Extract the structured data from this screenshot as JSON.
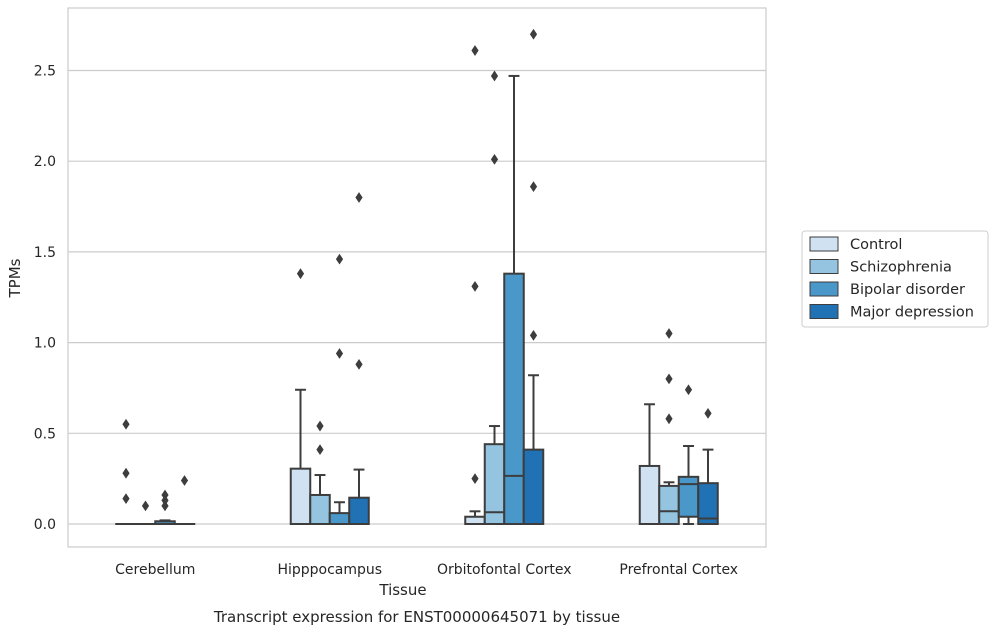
{
  "chart_data": {
    "type": "box",
    "caption": "Transcript expression for ENST00000645071 by tissue",
    "xlabel": "Tissue",
    "ylabel": "TPMs",
    "ylim": [
      -0.13,
      2.85
    ],
    "yticks": [
      "0.0",
      "0.5",
      "1.0",
      "1.5",
      "2.0",
      "2.5"
    ],
    "ytick_values": [
      0,
      0.5,
      1.0,
      1.5,
      2.0,
      2.5
    ],
    "grid": "horizontal",
    "legend_position": "right",
    "categories": [
      "Cerebellum",
      "Hipppocampus",
      "Orbitofontal Cortex",
      "Prefrontal Cortex"
    ],
    "series": [
      {
        "name": "Control",
        "color": "#d0e1f2",
        "boxes": [
          {
            "q1": 0,
            "median": 0,
            "q3": 0,
            "whisker_low": 0,
            "whisker_high": 0,
            "outliers": [
              0.55,
              0.28,
              0.14
            ]
          },
          {
            "q1": 0,
            "median": 0,
            "q3": 0.305,
            "whisker_low": 0,
            "whisker_high": 0.74,
            "outliers": [
              1.38
            ]
          },
          {
            "q1": 0,
            "median": 0,
            "q3": 0.04,
            "whisker_low": 0,
            "whisker_high": 0.07,
            "outliers": [
              0.25,
              1.31,
              2.61
            ]
          },
          {
            "q1": 0,
            "median": 0,
            "q3": 0.32,
            "whisker_low": 0,
            "whisker_high": 0.66,
            "outliers": []
          }
        ]
      },
      {
        "name": "Schizophrenia",
        "color": "#94c4df",
        "boxes": [
          {
            "q1": 0,
            "median": 0,
            "q3": 0,
            "whisker_low": 0,
            "whisker_high": 0,
            "outliers": [
              0.1
            ]
          },
          {
            "q1": 0,
            "median": 0,
            "q3": 0.16,
            "whisker_low": 0,
            "whisker_high": 0.27,
            "outliers": [
              0.41,
              0.54
            ]
          },
          {
            "q1": 0,
            "median": 0.065,
            "q3": 0.44,
            "whisker_low": 0,
            "whisker_high": 0.54,
            "outliers": [
              2.01,
              2.47
            ]
          },
          {
            "q1": 0,
            "median": 0.07,
            "q3": 0.21,
            "whisker_low": 0,
            "whisker_high": 0.23,
            "outliers": [
              0.58,
              0.8,
              1.05
            ]
          }
        ]
      },
      {
        "name": "Bipolar disorder",
        "color": "#4a98c9",
        "boxes": [
          {
            "q1": 0,
            "median": 0,
            "q3": 0.015,
            "whisker_low": 0,
            "whisker_high": 0.02,
            "outliers": [
              0.1,
              0.13,
              0.16
            ]
          },
          {
            "q1": 0,
            "median": 0,
            "q3": 0.06,
            "whisker_low": 0,
            "whisker_high": 0.12,
            "outliers": [
              0.94,
              1.46
            ]
          },
          {
            "q1": 0,
            "median": 0.265,
            "q3": 1.38,
            "whisker_low": 0,
            "whisker_high": 2.47,
            "outliers": []
          },
          {
            "q1": 0.04,
            "median": 0.22,
            "q3": 0.26,
            "whisker_low": 0,
            "whisker_high": 0.43,
            "outliers": [
              0.74
            ]
          }
        ]
      },
      {
        "name": "Major depression",
        "color": "#2171b5",
        "boxes": [
          {
            "q1": 0,
            "median": 0,
            "q3": 0,
            "whisker_low": 0,
            "whisker_high": 0,
            "outliers": [
              0.24
            ]
          },
          {
            "q1": 0,
            "median": 0,
            "q3": 0.145,
            "whisker_low": 0,
            "whisker_high": 0.3,
            "outliers": [
              0.88,
              1.8
            ]
          },
          {
            "q1": 0,
            "median": 0,
            "q3": 0.41,
            "whisker_low": 0,
            "whisker_high": 0.82,
            "outliers": [
              1.04,
              1.86,
              2.7
            ]
          },
          {
            "q1": 0,
            "median": 0.03,
            "q3": 0.225,
            "whisker_low": 0,
            "whisker_high": 0.41,
            "outliers": [
              0.61
            ]
          }
        ]
      }
    ]
  }
}
